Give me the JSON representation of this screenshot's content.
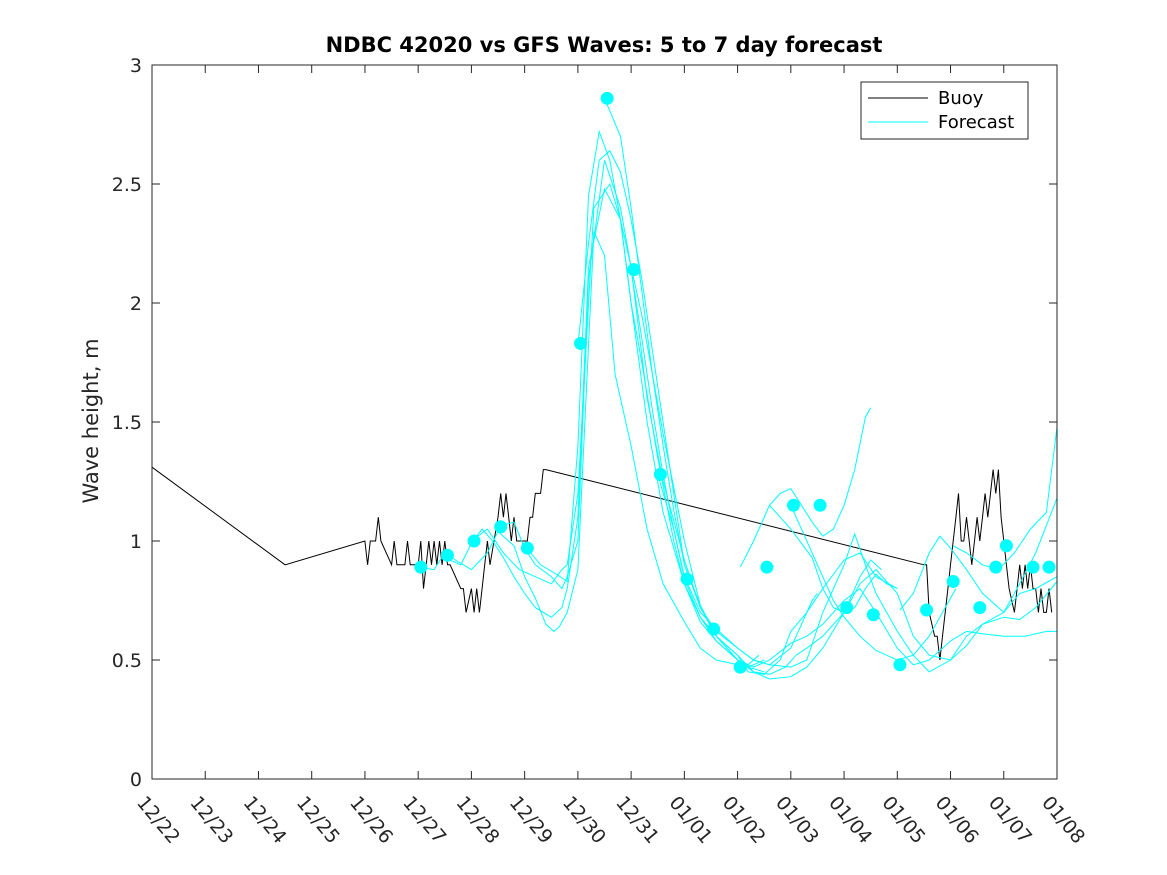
{
  "chart_data": {
    "type": "line",
    "title": "NDBC 42020 vs GFS Waves: 5 to 7 day forecast",
    "xlabel": "",
    "ylabel": "Wave height, m",
    "xlim": [
      0,
      17
    ],
    "ylim": [
      0,
      3
    ],
    "xticks": [
      0,
      1,
      2,
      3,
      4,
      5,
      6,
      7,
      8,
      9,
      10,
      11,
      12,
      13,
      14,
      15,
      16,
      17
    ],
    "xticklabels": [
      "12/22",
      "12/23",
      "12/24",
      "12/25",
      "12/26",
      "12/27",
      "12/28",
      "12/29",
      "12/30",
      "12/31",
      "01/01",
      "01/02",
      "01/03",
      "01/04",
      "01/05",
      "01/06",
      "01/07",
      "01/08"
    ],
    "yticks": [
      0,
      0.5,
      1,
      1.5,
      2,
      2.5,
      3
    ],
    "yticklabels": [
      "0",
      "0.5",
      "1",
      "1.5",
      "2",
      "2.5",
      "3"
    ],
    "legend": {
      "location": "top-right",
      "entries": [
        {
          "label": "Buoy",
          "color": "#000000"
        },
        {
          "label": "Forecast",
          "color": "#00ffff"
        }
      ]
    },
    "series": [
      {
        "name": "Buoy",
        "color": "#000000",
        "x": [
          0,
          2.5,
          4,
          4.05,
          4.1,
          4.2,
          4.25,
          4.3,
          4.5,
          4.55,
          4.6,
          4.75,
          4.8,
          4.85,
          5,
          5.05,
          5.1,
          5.15,
          5.2,
          5.25,
          5.3,
          5.35,
          5.4,
          5.45,
          5.5,
          5.55,
          5.6,
          5.8,
          5.85,
          5.9,
          6,
          6.05,
          6.1,
          6.15,
          6.2,
          6.25,
          6.3,
          6.35,
          6.5,
          6.55,
          6.6,
          6.65,
          6.7,
          6.75,
          6.8,
          6.85,
          6.9,
          6.95,
          7,
          7.05,
          7.1,
          7.15,
          7.2,
          7.25,
          7.3,
          7.35,
          7.4,
          14.5,
          14.55,
          14.6,
          14.7,
          14.75,
          14.8,
          14.85,
          14.9,
          14.95,
          15,
          15.05,
          15.1,
          15.15,
          15.2,
          15.25,
          15.3,
          15.35,
          15.4,
          15.45,
          15.5,
          15.55,
          15.6,
          15.65,
          15.7,
          15.75,
          15.8,
          15.85,
          15.9,
          15.95,
          16,
          16.05,
          16.1,
          16.2,
          16.25,
          16.3,
          16.35,
          16.4,
          16.45,
          16.5,
          16.55,
          16.6,
          16.65,
          16.7,
          16.75,
          16.8,
          16.85,
          16.9
        ],
        "values": [
          1.31,
          0.9,
          1.0,
          0.9,
          1.0,
          1.0,
          1.1,
          1.0,
          0.9,
          1.0,
          0.9,
          0.9,
          1.0,
          0.9,
          0.9,
          1.0,
          0.8,
          0.9,
          1.0,
          0.9,
          1.0,
          0.9,
          1.0,
          0.9,
          1.0,
          0.9,
          0.9,
          0.8,
          0.8,
          0.7,
          0.8,
          0.7,
          0.8,
          0.7,
          0.8,
          0.9,
          1.0,
          0.9,
          1.1,
          1.2,
          1.1,
          1.2,
          1.1,
          1.0,
          1.1,
          1.0,
          1.0,
          1.0,
          1.0,
          1.0,
          1.1,
          1.1,
          1.2,
          1.2,
          1.2,
          1.3,
          1.3,
          0.9,
          0.9,
          0.7,
          0.6,
          0.6,
          0.5,
          0.6,
          0.7,
          0.8,
          0.9,
          1.0,
          1.1,
          1.2,
          1.0,
          1.0,
          1.1,
          1.0,
          0.9,
          1.0,
          1.1,
          1.0,
          1.1,
          1.2,
          1.1,
          1.2,
          1.3,
          1.2,
          1.3,
          1.1,
          1.0,
          0.9,
          0.8,
          0.7,
          0.8,
          0.9,
          0.8,
          0.9,
          0.8,
          0.9,
          0.8,
          0.8,
          0.7,
          0.8,
          0.7,
          0.7,
          0.8,
          0.7
        ]
      },
      {
        "name": "Forecast",
        "color": "#00ffff",
        "x": [
          5,
          5.3,
          5.5,
          5.7,
          6,
          6.3,
          6.5,
          6.8,
          7,
          7.2,
          7.4,
          7.55,
          7.65,
          7.8,
          8,
          8.3,
          8.5,
          8.7,
          9,
          9.3,
          9.6,
          10,
          10.3,
          10.6,
          11,
          11.2,
          11.5
        ],
        "values": [
          0.89,
          0.88,
          0.95,
          0.92,
          0.88,
          0.95,
          1.04,
          0.98,
          0.85,
          0.76,
          0.65,
          0.62,
          0.64,
          0.7,
          0.88,
          2.3,
          2.2,
          1.7,
          1.4,
          1.05,
          0.82,
          0.66,
          0.55,
          0.5,
          0.48,
          0.47,
          0.5
        ]
      },
      {
        "name": "Forecast",
        "color": "#00ffff",
        "x": [
          5.5,
          5.8,
          6,
          6.2,
          6.4,
          6.6,
          6.8,
          7,
          7.2,
          7.5,
          7.7,
          7.8,
          8,
          8.2,
          8.5,
          8.8,
          9.2,
          9.6,
          10,
          10.3,
          10.6,
          11,
          11.2,
          11.5,
          11.8,
          12,
          12.3,
          12.6,
          13,
          13.3,
          13.6,
          14
        ],
        "values": [
          0.93,
          0.9,
          0.99,
          1.05,
          1.0,
          0.93,
          0.85,
          0.78,
          0.72,
          0.68,
          0.72,
          0.8,
          1.1,
          2.15,
          2.48,
          2.35,
          1.95,
          1.45,
          1.0,
          0.73,
          0.6,
          0.52,
          0.45,
          0.44,
          0.5,
          0.62,
          0.7,
          0.8,
          0.92,
          0.95,
          0.85,
          0.8
        ]
      },
      {
        "name": "Forecast",
        "color": "#00ffff",
        "x": [
          6,
          6.3,
          6.6,
          6.9,
          7.2,
          7.5,
          7.7,
          7.8,
          8,
          8.3,
          8.6,
          8.8,
          9,
          9.3,
          9.6,
          10,
          10.3,
          10.6,
          11,
          11.3,
          11.6,
          12,
          12.3,
          12.6,
          13,
          13.3,
          13.6,
          14,
          14.3,
          14.6,
          15,
          15.3,
          15.6,
          16,
          16.4,
          16.8,
          17
        ],
        "values": [
          1.0,
          1.05,
          0.95,
          0.88,
          0.85,
          0.82,
          0.88,
          0.9,
          1.2,
          2.4,
          2.5,
          2.35,
          2.0,
          1.5,
          1.12,
          0.82,
          0.66,
          0.58,
          0.5,
          0.47,
          0.5,
          0.57,
          0.6,
          0.65,
          0.75,
          0.8,
          0.7,
          0.55,
          0.48,
          0.5,
          0.58,
          0.62,
          0.61,
          0.6,
          0.6,
          0.62,
          0.62
        ]
      },
      {
        "name": "Forecast",
        "color": "#00ffff",
        "x": [
          6.5,
          6.8,
          7,
          7.2,
          7.5,
          7.7,
          7.8,
          8,
          8.2,
          8.5,
          8.8,
          9,
          9.3,
          9.6,
          10,
          10.3,
          10.6,
          11,
          11.3,
          11.6,
          12,
          12.3,
          12.6,
          13,
          13.2,
          13.4,
          13.6,
          14,
          14.3,
          14.6,
          15,
          15.3,
          15.6,
          16,
          16.3,
          16.6,
          17
        ],
        "values": [
          1.06,
          1.08,
          0.97,
          0.9,
          0.85,
          0.8,
          0.85,
          1.0,
          2.1,
          2.6,
          2.4,
          2.15,
          1.6,
          1.25,
          0.92,
          0.72,
          0.62,
          0.55,
          0.5,
          0.48,
          0.47,
          0.5,
          0.7,
          0.9,
          1.03,
          0.9,
          0.78,
          0.62,
          0.52,
          0.45,
          0.5,
          0.6,
          0.65,
          0.68,
          0.67,
          0.72,
          0.83
        ]
      },
      {
        "name": "Forecast",
        "color": "#00ffff",
        "x": [
          7,
          7.3,
          7.6,
          7.8,
          8,
          8.2,
          8.4,
          8.6,
          8.8,
          9,
          9.2,
          9.5,
          9.8,
          10,
          10.3,
          10.6,
          11,
          11.3,
          11.6,
          11.9,
          12.1,
          12.3,
          12.6,
          13,
          13.3,
          13.6,
          14,
          14.3,
          14.6,
          15,
          15.3,
          15.6,
          16,
          16.3,
          16.6,
          17
        ],
        "values": [
          0.98,
          0.9,
          0.86,
          0.83,
          1.4,
          2.45,
          2.72,
          2.6,
          2.35,
          2.0,
          1.75,
          1.35,
          1.0,
          0.82,
          0.68,
          0.6,
          0.52,
          0.45,
          0.44,
          0.47,
          0.52,
          0.55,
          0.6,
          0.7,
          0.82,
          0.88,
          0.78,
          0.6,
          0.52,
          0.5,
          0.56,
          0.65,
          0.7,
          0.78,
          0.8,
          0.85
        ]
      },
      {
        "name": "Forecast",
        "color": "#00ffff",
        "x": [
          8,
          8.2,
          8.4,
          8.6,
          8.8,
          9,
          9.2,
          9.5,
          9.8,
          10,
          10.3,
          10.6,
          11,
          11.3,
          11.6,
          12,
          12.3,
          12.6,
          13,
          13.3,
          13.5,
          13.7
        ],
        "values": [
          1.82,
          2.25,
          2.6,
          2.64,
          2.55,
          2.35,
          2.1,
          1.65,
          1.2,
          0.9,
          0.72,
          0.6,
          0.5,
          0.45,
          0.42,
          0.43,
          0.47,
          0.55,
          0.7,
          0.85,
          0.92,
          0.88
        ]
      },
      {
        "name": "Forecast",
        "color": "#00ffff",
        "x": [
          8.5,
          8.8,
          9,
          9.2,
          9.4,
          9.6,
          9.8,
          10,
          10.3,
          10.6,
          11,
          11.2,
          11.5
        ],
        "values": [
          2.86,
          2.7,
          2.4,
          2.05,
          1.7,
          1.4,
          1.13,
          0.9,
          0.73,
          0.6,
          0.5,
          0.47,
          0.45
        ]
      },
      {
        "name": "Forecast",
        "color": "#00ffff",
        "x": [
          9,
          9.2,
          9.4,
          9.6,
          9.8,
          10,
          10.3,
          10.6,
          11,
          11.2,
          11.4
        ],
        "values": [
          2.14,
          1.85,
          1.55,
          1.28,
          1.05,
          0.84,
          0.68,
          0.58,
          0.5,
          0.48,
          0.52
        ]
      },
      {
        "name": "Forecast",
        "color": "#00ffff",
        "x": [
          9.5,
          9.8,
          10,
          10.3,
          10.6,
          11,
          11.3,
          11.6,
          12,
          12.2,
          12.4,
          12.5
        ],
        "values": [
          1.28,
          1.05,
          0.85,
          0.7,
          0.63,
          0.55,
          0.5,
          0.48,
          0.55,
          0.65,
          0.75,
          0.78
        ]
      },
      {
        "name": "Forecast",
        "color": "#00ffff",
        "x": [
          11.05,
          11.3,
          11.6,
          11.8,
          12,
          12.2,
          12.4,
          12.6,
          12.8,
          13,
          13.2,
          13.4,
          13.5
        ],
        "values": [
          0.89,
          1.0,
          1.15,
          1.2,
          1.22,
          1.15,
          1.08,
          1.02,
          1.05,
          1.15,
          1.3,
          1.52,
          1.56
        ]
      },
      {
        "name": "Forecast",
        "color": "#00ffff",
        "x": [
          11.6,
          11.8,
          12,
          12.2,
          12.4,
          12.6,
          12.8,
          13,
          13.2,
          13.4,
          13.6,
          13.8,
          14
        ],
        "values": [
          1.15,
          1.1,
          1.05,
          0.99,
          0.93,
          0.8,
          0.72,
          0.7,
          0.72,
          0.8,
          0.86,
          0.82,
          0.8
        ]
      },
      {
        "name": "Forecast",
        "color": "#00ffff",
        "x": [
          12,
          12.2,
          12.4,
          12.6,
          12.8,
          13,
          13.3,
          13.6,
          14,
          14.3,
          14.6,
          14.9,
          15.1
        ],
        "values": [
          1.15,
          1.05,
          0.95,
          0.85,
          0.75,
          0.68,
          0.6,
          0.54,
          0.5,
          0.52,
          0.6,
          0.72,
          0.8
        ]
      },
      {
        "name": "Forecast",
        "color": "#00ffff",
        "x": [
          14.05,
          14.3,
          14.6,
          14.8,
          15,
          15.3,
          15.6,
          16,
          16.3,
          16.6,
          17
        ],
        "values": [
          0.71,
          0.78,
          0.95,
          1.02,
          0.97,
          0.88,
          0.78,
          0.7,
          0.82,
          0.95,
          1.18
        ]
      },
      {
        "name": "Forecast",
        "color": "#00ffff",
        "x": [
          15.05,
          15.3,
          15.6,
          15.9,
          16.2,
          16.5,
          16.8,
          17
        ],
        "values": [
          0.98,
          0.95,
          0.9,
          0.88,
          0.95,
          1.05,
          1.12,
          1.48
        ]
      }
    ],
    "markers": {
      "name": "Forecast start",
      "color": "#00ffff",
      "x": [
        5.05,
        5.55,
        6.05,
        6.55,
        7.05,
        8.05,
        8.55,
        9.05,
        9.55,
        10.05,
        10.55,
        11.05,
        11.55,
        12.05,
        12.55,
        13.05,
        13.55,
        14.05,
        14.55,
        15.05,
        15.55,
        16.05,
        16.55
      ],
      "values": [
        0.89,
        0.94,
        1.0,
        1.06,
        0.97,
        1.83,
        2.86,
        2.14,
        1.28,
        0.84,
        0.63,
        0.47,
        0.89,
        1.15,
        1.15,
        0.72,
        0.69,
        0.48,
        0.71,
        0.83,
        0.72,
        0.98,
        0.89
      ]
    },
    "extra_markers": {
      "x": [
        15.85,
        16.85
      ],
      "values": [
        0.89,
        0.89
      ]
    }
  }
}
